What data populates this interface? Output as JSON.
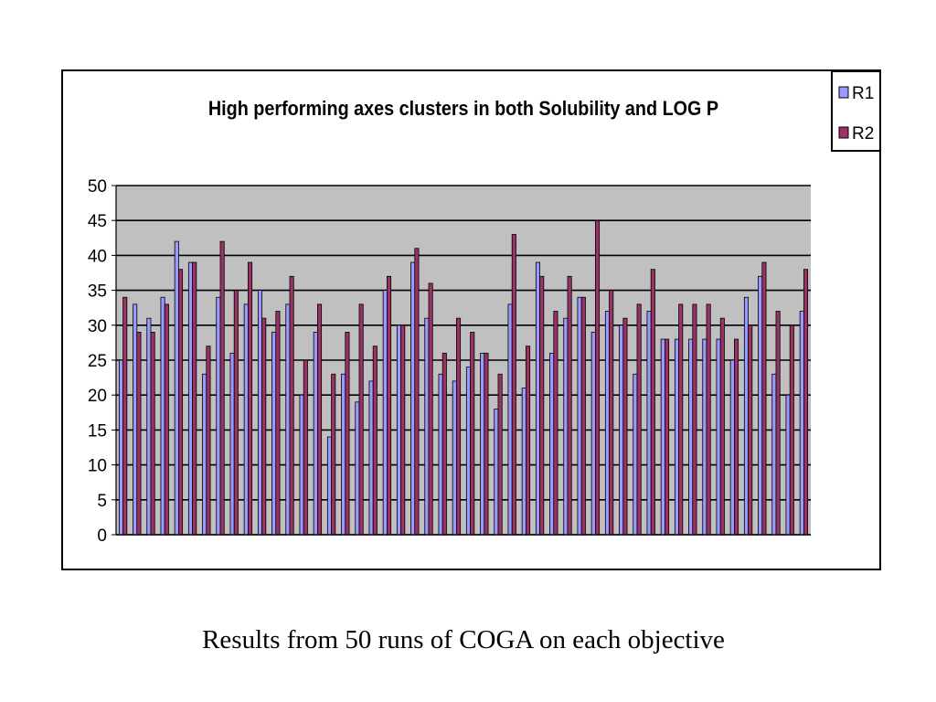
{
  "caption": "Results from 50 runs of COGA on each objective",
  "colors": {
    "plot_bg": "#c0c0c0",
    "r1": "#9999ff",
    "r2": "#993366",
    "grid": "#000000"
  },
  "chart_data": {
    "type": "bar",
    "title": "High performing axes clusters in both Solubility and LOG P",
    "xlabel": "",
    "ylabel": "",
    "ylim": [
      0,
      50
    ],
    "yticks": [
      0,
      5,
      10,
      15,
      20,
      25,
      30,
      35,
      40,
      45,
      50
    ],
    "grid": true,
    "legend": "top-right",
    "series": [
      {
        "name": "R1",
        "values": [
          25,
          33,
          31,
          34,
          42,
          39,
          23,
          34,
          26,
          33,
          35,
          29,
          33,
          20,
          29,
          14,
          23,
          19,
          22,
          35,
          30,
          39,
          31,
          23,
          22,
          24,
          26,
          18,
          33,
          21,
          39,
          26,
          31,
          34,
          29,
          32,
          30,
          23,
          32,
          28,
          28,
          28,
          28,
          28,
          25,
          34,
          37,
          23,
          20,
          32
        ]
      },
      {
        "name": "R2",
        "values": [
          34,
          29,
          29,
          33,
          38,
          39,
          27,
          42,
          35,
          39,
          31,
          32,
          37,
          25,
          33,
          23,
          29,
          33,
          27,
          37,
          30,
          41,
          36,
          26,
          31,
          29,
          26,
          23,
          43,
          27,
          37,
          32,
          37,
          34,
          45,
          35,
          31,
          33,
          38,
          28,
          33,
          33,
          33,
          31,
          28,
          30,
          39,
          32,
          30,
          38
        ]
      }
    ]
  }
}
